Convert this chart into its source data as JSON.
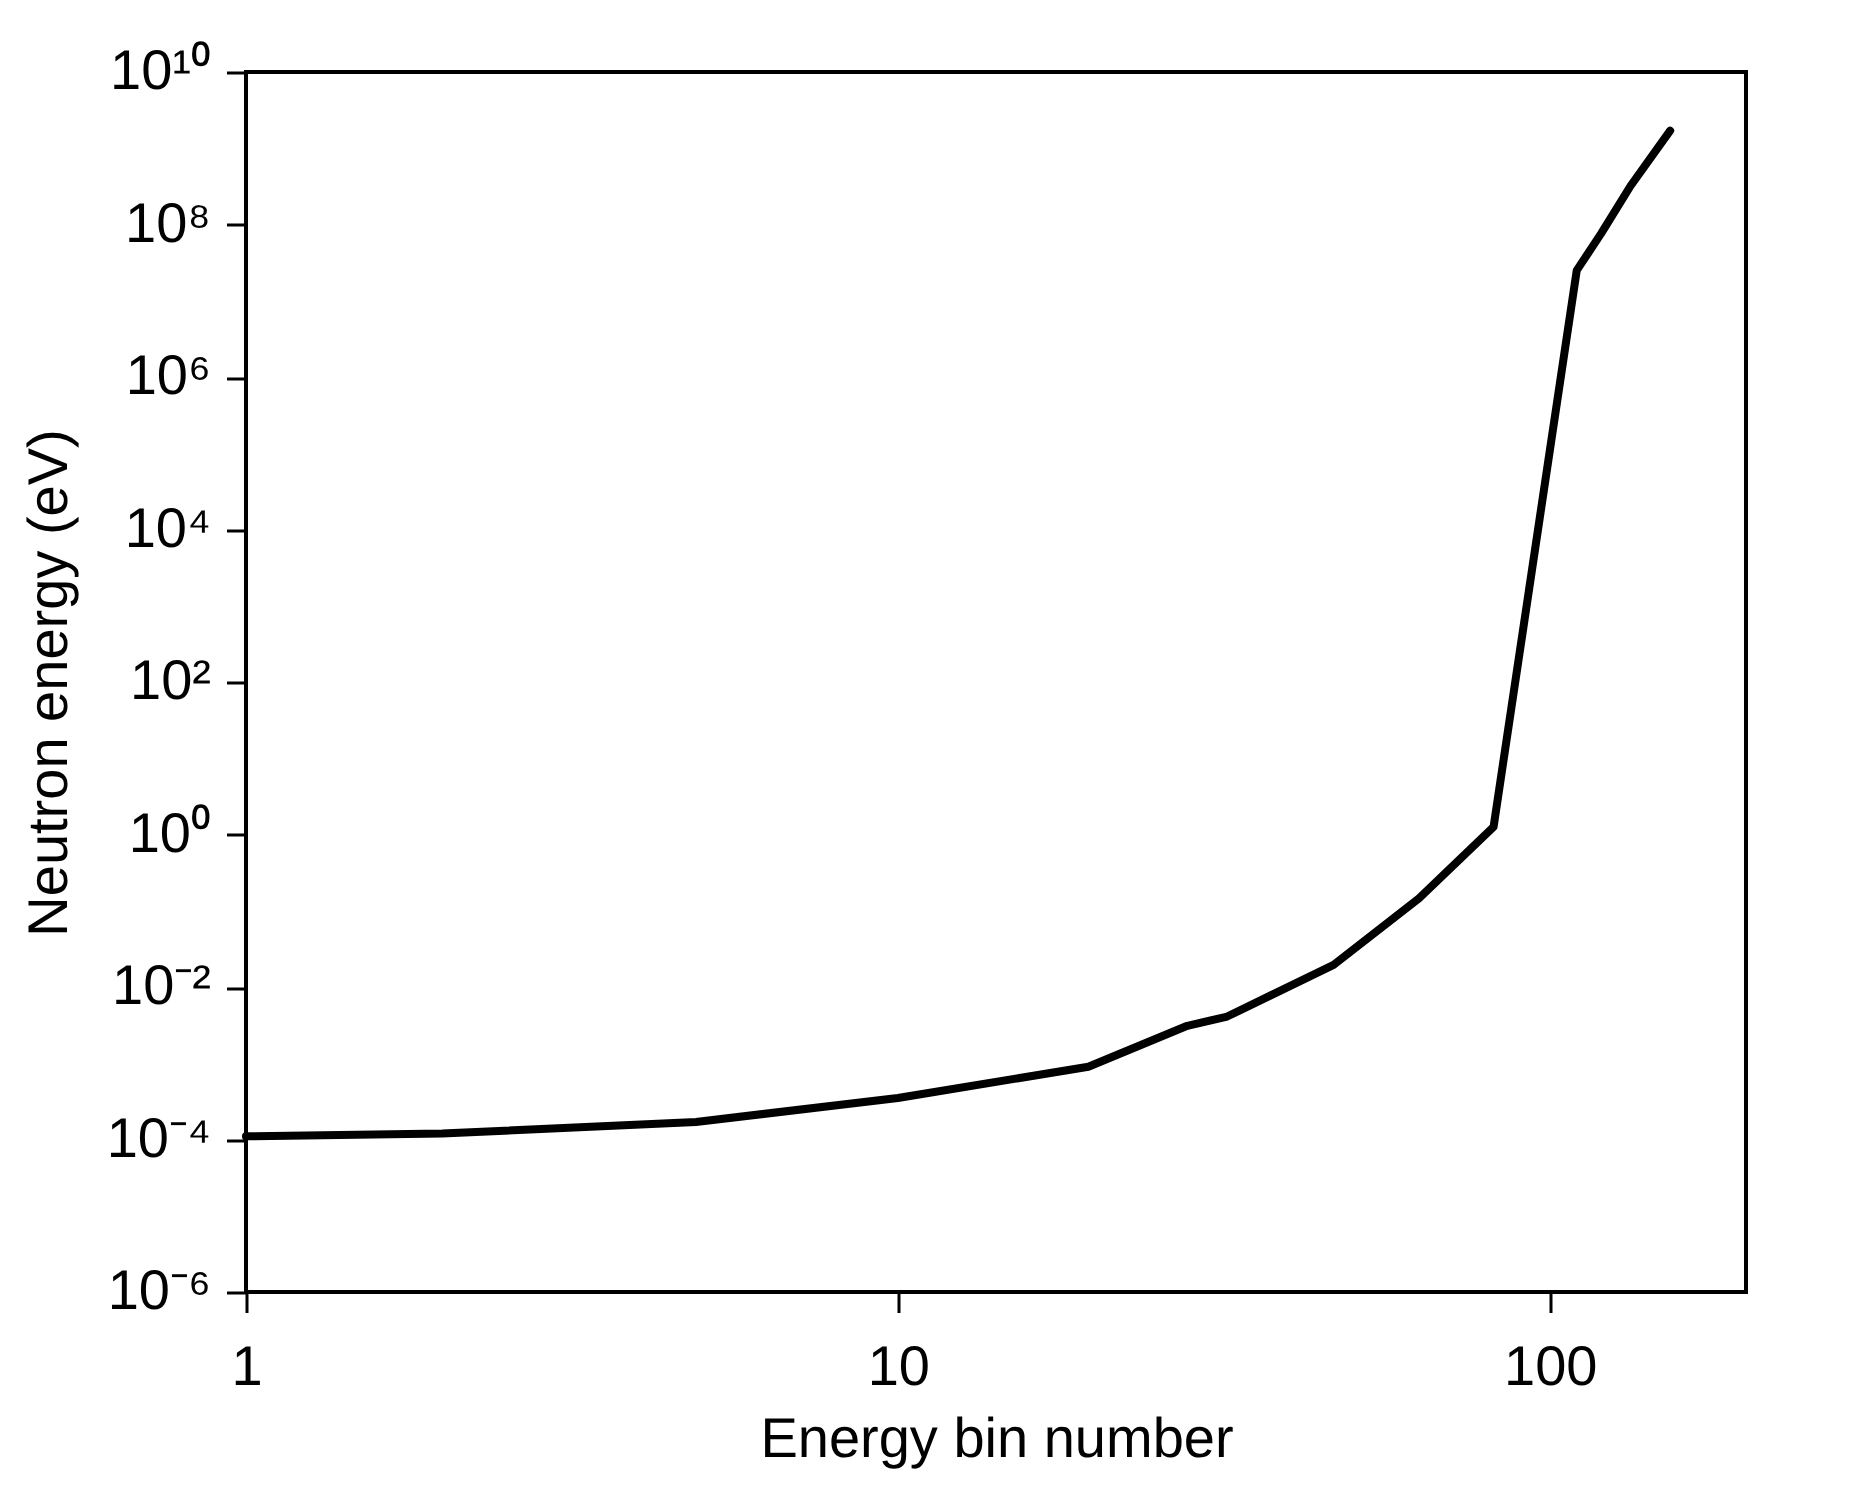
{
  "chart_data": {
    "type": "line",
    "xlabel": "Energy bin number",
    "ylabel": "Neutron energy (eV)",
    "log": "xy",
    "xlim": [
      1,
      200
    ],
    "ylim": [
      1e-06,
      10000000000.0
    ],
    "xticks": [
      1,
      10,
      100
    ],
    "yticks": [
      {
        "value": 1e-06,
        "label": "10⁻⁶"
      },
      {
        "value": 0.0001,
        "label": "10⁻⁴"
      },
      {
        "value": 0.01,
        "label": "10⁻²"
      },
      {
        "value": 1,
        "label": "10⁰"
      },
      {
        "value": 100.0,
        "label": "10²"
      },
      {
        "value": 10000.0,
        "label": "10⁴"
      },
      {
        "value": 1000000.0,
        "label": "10⁶"
      },
      {
        "value": 100000000.0,
        "label": "10⁸"
      },
      {
        "value": 10000000000.0,
        "label": "10¹⁰"
      }
    ],
    "x": [
      1,
      2,
      4.9,
      10,
      19.6,
      27.8,
      32,
      46.6,
      63,
      82,
      110,
      120,
      133,
      153
    ],
    "series": [
      {
        "color": "#000000",
        "values": [
          0.00011,
          0.00012,
          0.00017,
          0.00035,
          0.0009,
          0.0031,
          0.0041,
          0.0195,
          0.145,
          1.26,
          25000000.0,
          77000000.0,
          320000000.0,
          1700000000.0
        ]
      }
    ]
  }
}
